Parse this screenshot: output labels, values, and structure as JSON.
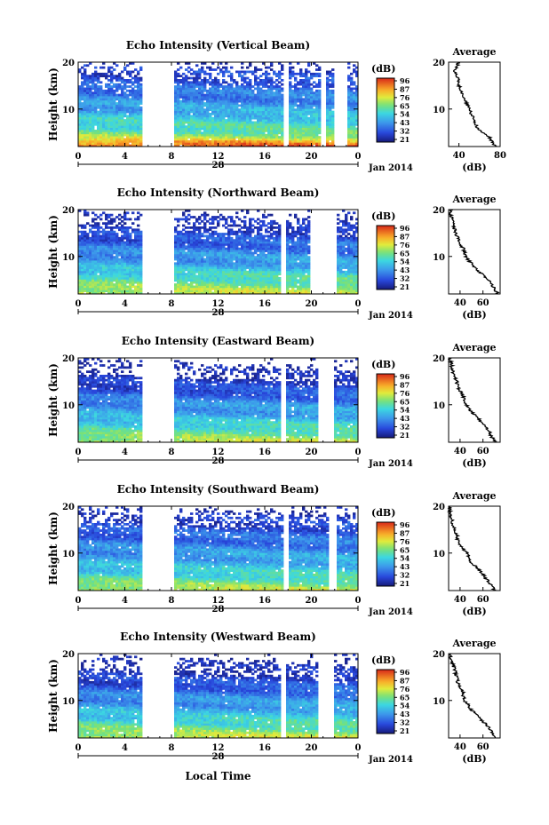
{
  "figure": {
    "xlabel": "Local Time",
    "date_label": "Jan 2014",
    "day_label": "28",
    "colorbar_unit": "(dB)",
    "colorbar_ticks": [
      "96",
      "87",
      "76",
      "65",
      "54",
      "43",
      "32",
      "21"
    ],
    "profile_title": "Average",
    "profile_xlabel": "(dB)"
  },
  "chart_data": [
    {
      "type": "heatmap",
      "title": "Echo Intensity (Vertical Beam)",
      "ylabel": "Height (km)",
      "xlim": [
        0,
        24
      ],
      "ylim": [
        2,
        20
      ],
      "xticks": [
        "0",
        "4",
        "8",
        "12",
        "16",
        "20",
        "0"
      ],
      "yticks": [
        "20",
        "10"
      ],
      "color_range_db": [
        21,
        96
      ],
      "data_gaps_hours": [
        [
          5.6,
          8.2
        ],
        [
          17.6,
          18.0
        ],
        [
          20.7,
          21.3
        ],
        [
          22.0,
          23.0
        ]
      ],
      "layer_profile_db": [
        [
          2,
          92
        ],
        [
          3,
          82
        ],
        [
          4,
          70
        ],
        [
          5,
          62
        ],
        [
          6,
          58
        ],
        [
          7,
          56
        ],
        [
          8,
          53
        ],
        [
          9,
          50
        ],
        [
          10,
          46
        ],
        [
          11,
          44
        ],
        [
          12,
          42
        ],
        [
          13,
          40
        ],
        [
          14,
          38
        ],
        [
          15,
          36
        ],
        [
          16,
          34
        ],
        [
          17,
          32
        ],
        [
          18,
          30
        ],
        [
          19,
          28
        ],
        [
          20,
          27
        ]
      ],
      "profile": {
        "xlim": [
          30,
          80
        ],
        "xticks": [
          "40",
          "80"
        ],
        "points": [
          [
            2,
            76
          ],
          [
            3,
            72
          ],
          [
            4,
            70
          ],
          [
            5,
            62
          ],
          [
            6,
            58
          ],
          [
            7,
            56
          ],
          [
            8,
            55
          ],
          [
            9,
            52
          ],
          [
            10,
            50
          ],
          [
            11,
            48
          ],
          [
            12,
            46
          ],
          [
            13,
            44
          ],
          [
            14,
            42
          ],
          [
            15,
            40
          ],
          [
            16,
            40
          ],
          [
            17,
            38
          ],
          [
            18,
            36
          ],
          [
            19,
            38
          ],
          [
            20,
            40
          ]
        ]
      }
    },
    {
      "type": "heatmap",
      "title": "Echo Intensity (Northward Beam)",
      "ylabel": "Height (km)",
      "xlim": [
        0,
        24
      ],
      "ylim": [
        2,
        20
      ],
      "xticks": [
        "0",
        "4",
        "8",
        "12",
        "16",
        "20",
        "0"
      ],
      "yticks": [
        "20",
        "10"
      ],
      "color_range_db": [
        21,
        96
      ],
      "data_gaps_hours": [
        [
          5.6,
          8.2
        ],
        [
          17.3,
          17.9
        ],
        [
          19.8,
          22.1
        ]
      ],
      "layer_profile_db": [
        [
          2,
          72
        ],
        [
          3,
          68
        ],
        [
          4,
          64
        ],
        [
          5,
          60
        ],
        [
          6,
          56
        ],
        [
          7,
          52
        ],
        [
          8,
          48
        ],
        [
          9,
          45
        ],
        [
          10,
          43
        ],
        [
          11,
          41
        ],
        [
          12,
          39
        ],
        [
          13,
          36
        ],
        [
          14,
          33
        ],
        [
          15,
          31
        ],
        [
          16,
          29
        ],
        [
          17,
          27
        ],
        [
          18,
          26
        ],
        [
          19,
          25
        ],
        [
          20,
          24
        ]
      ],
      "profile": {
        "xlim": [
          30,
          75
        ],
        "xticks": [
          "40",
          "60"
        ],
        "points": [
          [
            2,
            73
          ],
          [
            3,
            70
          ],
          [
            4,
            68
          ],
          [
            5,
            64
          ],
          [
            6,
            60
          ],
          [
            7,
            56
          ],
          [
            8,
            52
          ],
          [
            9,
            48
          ],
          [
            10,
            45
          ],
          [
            11,
            44
          ],
          [
            12,
            42
          ],
          [
            13,
            40
          ],
          [
            14,
            38
          ],
          [
            15,
            36
          ],
          [
            16,
            35
          ],
          [
            17,
            34
          ],
          [
            18,
            33
          ],
          [
            19,
            32
          ],
          [
            20,
            31
          ]
        ]
      }
    },
    {
      "type": "heatmap",
      "title": "Echo Intensity (Eastward Beam)",
      "ylabel": "Height (km)",
      "xlim": [
        0,
        24
      ],
      "ylim": [
        2,
        20
      ],
      "xticks": [
        "0",
        "4",
        "8",
        "12",
        "16",
        "20",
        "0"
      ],
      "yticks": [
        "20",
        "10"
      ],
      "color_range_db": [
        21,
        96
      ],
      "data_gaps_hours": [
        [
          5.6,
          8.2
        ],
        [
          17.3,
          17.9
        ],
        [
          20.6,
          22.0
        ]
      ],
      "layer_profile_db": [
        [
          2,
          72
        ],
        [
          3,
          66
        ],
        [
          4,
          62
        ],
        [
          5,
          58
        ],
        [
          6,
          54
        ],
        [
          7,
          50
        ],
        [
          8,
          47
        ],
        [
          9,
          45
        ],
        [
          10,
          43
        ],
        [
          11,
          40
        ],
        [
          12,
          37
        ],
        [
          13,
          34
        ],
        [
          14,
          31
        ],
        [
          15,
          29
        ],
        [
          16,
          27
        ],
        [
          17,
          25
        ],
        [
          18,
          24
        ],
        [
          19,
          23
        ],
        [
          20,
          22
        ]
      ],
      "profile": {
        "xlim": [
          30,
          75
        ],
        "xticks": [
          "40",
          "60"
        ],
        "points": [
          [
            2,
            72
          ],
          [
            3,
            68
          ],
          [
            4,
            66
          ],
          [
            5,
            63
          ],
          [
            6,
            60
          ],
          [
            7,
            56
          ],
          [
            8,
            52
          ],
          [
            9,
            48
          ],
          [
            10,
            45
          ],
          [
            11,
            44
          ],
          [
            12,
            42
          ],
          [
            13,
            40
          ],
          [
            14,
            38
          ],
          [
            15,
            37
          ],
          [
            16,
            35
          ],
          [
            17,
            34
          ],
          [
            18,
            33
          ],
          [
            19,
            32
          ],
          [
            20,
            31
          ]
        ]
      }
    },
    {
      "type": "heatmap",
      "title": "Echo Intensity (Southward Beam)",
      "ylabel": "Height (km)",
      "xlim": [
        0,
        24
      ],
      "ylim": [
        2,
        20
      ],
      "xticks": [
        "0",
        "4",
        "8",
        "12",
        "16",
        "20",
        "0"
      ],
      "yticks": [
        "20",
        "10"
      ],
      "color_range_db": [
        21,
        96
      ],
      "data_gaps_hours": [
        [
          5.6,
          8.2
        ],
        [
          17.6,
          18.0
        ],
        [
          21.4,
          22.1
        ]
      ],
      "layer_profile_db": [
        [
          2,
          70
        ],
        [
          3,
          66
        ],
        [
          4,
          62
        ],
        [
          5,
          58
        ],
        [
          6,
          54
        ],
        [
          7,
          51
        ],
        [
          8,
          48
        ],
        [
          9,
          46
        ],
        [
          10,
          44
        ],
        [
          11,
          42
        ],
        [
          12,
          40
        ],
        [
          13,
          38
        ],
        [
          14,
          36
        ],
        [
          15,
          34
        ],
        [
          16,
          32
        ],
        [
          17,
          30
        ],
        [
          18,
          28
        ],
        [
          19,
          26
        ],
        [
          20,
          24
        ]
      ],
      "profile": {
        "xlim": [
          30,
          75
        ],
        "xticks": [
          "40",
          "60"
        ],
        "points": [
          [
            2,
            70
          ],
          [
            3,
            68
          ],
          [
            4,
            64
          ],
          [
            5,
            62
          ],
          [
            6,
            58
          ],
          [
            7,
            54
          ],
          [
            8,
            50
          ],
          [
            9,
            48
          ],
          [
            10,
            46
          ],
          [
            11,
            42
          ],
          [
            12,
            40
          ],
          [
            13,
            38
          ],
          [
            14,
            37
          ],
          [
            15,
            36
          ],
          [
            16,
            34
          ],
          [
            17,
            33
          ],
          [
            18,
            32
          ],
          [
            19,
            31
          ],
          [
            20,
            31
          ]
        ]
      }
    },
    {
      "type": "heatmap",
      "title": "Echo Intensity (Westward Beam)",
      "ylabel": "Height (km)",
      "xlim": [
        0,
        24
      ],
      "ylim": [
        2,
        20
      ],
      "xticks": [
        "0",
        "4",
        "8",
        "12",
        "16",
        "20",
        "0"
      ],
      "yticks": [
        "20",
        "10"
      ],
      "color_range_db": [
        21,
        96
      ],
      "data_gaps_hours": [
        [
          5.6,
          8.2
        ],
        [
          17.3,
          17.9
        ],
        [
          20.6,
          22.0
        ]
      ],
      "layer_profile_db": [
        [
          2,
          72
        ],
        [
          3,
          67
        ],
        [
          4,
          63
        ],
        [
          5,
          59
        ],
        [
          6,
          55
        ],
        [
          7,
          51
        ],
        [
          8,
          48
        ],
        [
          9,
          45
        ],
        [
          10,
          43
        ],
        [
          11,
          41
        ],
        [
          12,
          38
        ],
        [
          13,
          35
        ],
        [
          14,
          32
        ],
        [
          15,
          30
        ],
        [
          16,
          28
        ],
        [
          17,
          26
        ],
        [
          18,
          25
        ],
        [
          19,
          24
        ],
        [
          20,
          23
        ]
      ],
      "profile": {
        "xlim": [
          30,
          75
        ],
        "xticks": [
          "40",
          "60"
        ],
        "points": [
          [
            2,
            72
          ],
          [
            3,
            68
          ],
          [
            4,
            66
          ],
          [
            5,
            62
          ],
          [
            6,
            58
          ],
          [
            7,
            54
          ],
          [
            8,
            50
          ],
          [
            9,
            47
          ],
          [
            10,
            44
          ],
          [
            11,
            43
          ],
          [
            12,
            42
          ],
          [
            13,
            40
          ],
          [
            14,
            38
          ],
          [
            15,
            37
          ],
          [
            16,
            36
          ],
          [
            17,
            35
          ],
          [
            18,
            33
          ],
          [
            19,
            32
          ],
          [
            20,
            31
          ]
        ]
      }
    }
  ]
}
